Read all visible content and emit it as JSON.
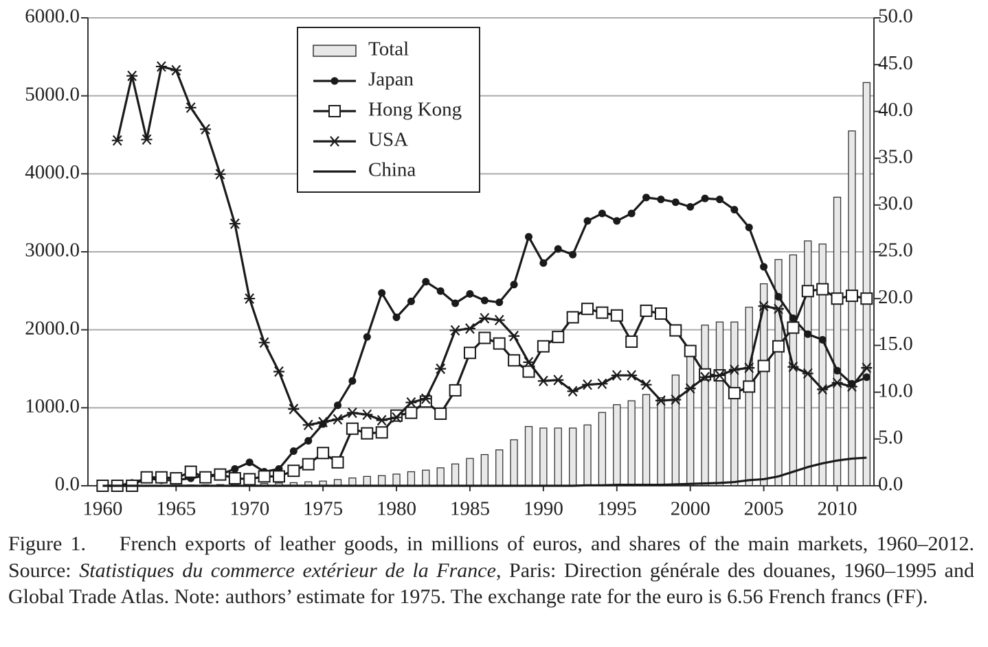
{
  "chart_data": {
    "type": "bar-line",
    "x": [
      1960,
      1961,
      1962,
      1963,
      1964,
      1965,
      1966,
      1967,
      1968,
      1969,
      1970,
      1971,
      1972,
      1973,
      1974,
      1975,
      1976,
      1977,
      1978,
      1979,
      1980,
      1981,
      1982,
      1983,
      1984,
      1985,
      1986,
      1987,
      1988,
      1989,
      1990,
      1991,
      1992,
      1993,
      1994,
      1995,
      1996,
      1997,
      1998,
      1999,
      2000,
      2001,
      2002,
      2003,
      2004,
      2005,
      2006,
      2007,
      2008,
      2009,
      2010,
      2011,
      2012
    ],
    "xlim": [
      1959,
      2012.5
    ],
    "xticks": [
      1960,
      1965,
      1970,
      1975,
      1980,
      1985,
      1990,
      1995,
      2000,
      2005,
      2010
    ],
    "ylim": [
      0,
      6000
    ],
    "yticks": [
      {
        "value": 0,
        "label": "0.0"
      },
      {
        "value": 1000,
        "label": "1000.0"
      },
      {
        "value": 2000,
        "label": "2000.0"
      },
      {
        "value": 3000,
        "label": "3000.0"
      },
      {
        "value": 4000,
        "label": "4000.0"
      },
      {
        "value": 5000,
        "label": "5000.0"
      },
      {
        "value": 6000,
        "label": "6000.0"
      }
    ],
    "y2lim": [
      0,
      50
    ],
    "y2ticks": [
      {
        "value": 0,
        "label": "0.0"
      },
      {
        "value": 5,
        "label": "5.0"
      },
      {
        "value": 10,
        "label": "10.0"
      },
      {
        "value": 15,
        "label": "15.0"
      },
      {
        "value": 20,
        "label": "20.0"
      },
      {
        "value": 25,
        "label": "25.0"
      },
      {
        "value": 30,
        "label": "30.0"
      },
      {
        "value": 35,
        "label": "35.0"
      },
      {
        "value": 40,
        "label": "40.0"
      },
      {
        "value": 45,
        "label": "45.0"
      },
      {
        "value": 50,
        "label": "50.0"
      }
    ],
    "grid": true,
    "legend": "top-center",
    "series": [
      {
        "name": "Total",
        "type": "bar",
        "axis": "y",
        "color": "#e8e8e8",
        "values": [
          2,
          2,
          3,
          5,
          5,
          8,
          10,
          12,
          15,
          20,
          25,
          30,
          35,
          40,
          50,
          60,
          80,
          100,
          120,
          130,
          150,
          180,
          200,
          230,
          280,
          350,
          400,
          460,
          590,
          760,
          740,
          740,
          740,
          780,
          940,
          1040,
          1090,
          1170,
          1130,
          1420,
          1800,
          2060,
          2100,
          2100,
          2290,
          2590,
          2900,
          2960,
          3140,
          3100,
          3700,
          4550,
          5170
        ]
      },
      {
        "name": "Japan",
        "type": "line",
        "axis": "y2",
        "marker": "circle",
        "color": "#1a1a1a",
        "values": [
          0,
          0,
          0.3,
          0.8,
          0.6,
          0.6,
          0.8,
          1.1,
          1.2,
          1.8,
          2.5,
          1.5,
          1.8,
          3.7,
          4.8,
          6.6,
          8.6,
          11.2,
          15.9,
          20.6,
          18.0,
          19.7,
          21.8,
          20.8,
          19.5,
          20.5,
          19.8,
          19.6,
          21.5,
          26.6,
          23.8,
          25.3,
          24.7,
          28.3,
          29.1,
          28.3,
          29.1,
          30.8,
          30.6,
          30.3,
          29.8,
          30.7,
          30.6,
          29.5,
          27.6,
          23.4,
          20.2,
          17.9,
          16.2,
          15.6,
          12.3,
          10.9,
          11.6
        ]
      },
      {
        "name": "Hong Kong",
        "type": "line",
        "axis": "y2",
        "marker": "square",
        "color": "#1a1a1a",
        "values": [
          0,
          0,
          0,
          0.9,
          0.9,
          0.8,
          1.5,
          0.9,
          1.2,
          0.8,
          0.7,
          1.0,
          1.0,
          1.6,
          2.3,
          3.5,
          2.5,
          6.1,
          5.6,
          5.7,
          7.5,
          7.8,
          9.0,
          7.7,
          10.2,
          14.2,
          15.8,
          15.2,
          13.4,
          12.2,
          14.9,
          15.9,
          18.0,
          18.9,
          18.5,
          18.2,
          15.4,
          18.7,
          18.4,
          16.6,
          14.4,
          11.9,
          11.8,
          9.9,
          10.6,
          12.8,
          14.9,
          16.9,
          20.8,
          21.0,
          20.0,
          20.3,
          20.0
        ]
      },
      {
        "name": "USA",
        "type": "line",
        "axis": "y2",
        "marker": "asterisk",
        "color": "#1a1a1a",
        "values": [
          null,
          36.9,
          43.8,
          37.0,
          44.8,
          44.4,
          40.4,
          38.1,
          33.3,
          28.0,
          20.0,
          15.3,
          12.2,
          8.2,
          6.5,
          6.8,
          7.1,
          7.8,
          7.6,
          7.0,
          7.3,
          8.9,
          9.3,
          12.5,
          16.6,
          16.8,
          17.9,
          17.7,
          16.0,
          13.2,
          11.2,
          11.3,
          10.1,
          10.8,
          10.9,
          11.8,
          11.8,
          10.8,
          9.1,
          9.2,
          10.4,
          11.6,
          11.8,
          12.4,
          12.6,
          19.2,
          18.9,
          12.7,
          12.0,
          10.3,
          11.0,
          10.6,
          12.6
        ]
      },
      {
        "name": "China",
        "type": "line",
        "axis": "y2",
        "marker": "none",
        "color": "#1a1a1a",
        "values": [
          0,
          0,
          0,
          0,
          0,
          0,
          0,
          0,
          0,
          0,
          0,
          0,
          0,
          0,
          0,
          0,
          0,
          0,
          0,
          0,
          0,
          0,
          0,
          0,
          0,
          0,
          0,
          0,
          0,
          0,
          0,
          0,
          0,
          0.05,
          0.05,
          0.1,
          0.1,
          0.1,
          0.1,
          0.15,
          0.2,
          0.25,
          0.3,
          0.4,
          0.6,
          0.7,
          1.0,
          1.5,
          2.0,
          2.4,
          2.7,
          2.9,
          3.0
        ]
      }
    ],
    "caption": {
      "label": "Figure 1.",
      "text1": "French exports of leather goods, in millions of euros, and shares of the main markets, 1960–2012. Source: ",
      "italic": "Statistiques du commerce extérieur de la France",
      "text2": ", Paris: Direction générale des douanes, 1960–1995 and Global Trade Atlas. Note: authors’ estimate for 1975. The exchange rate for the euro is 6.56 French francs (FF)."
    }
  }
}
